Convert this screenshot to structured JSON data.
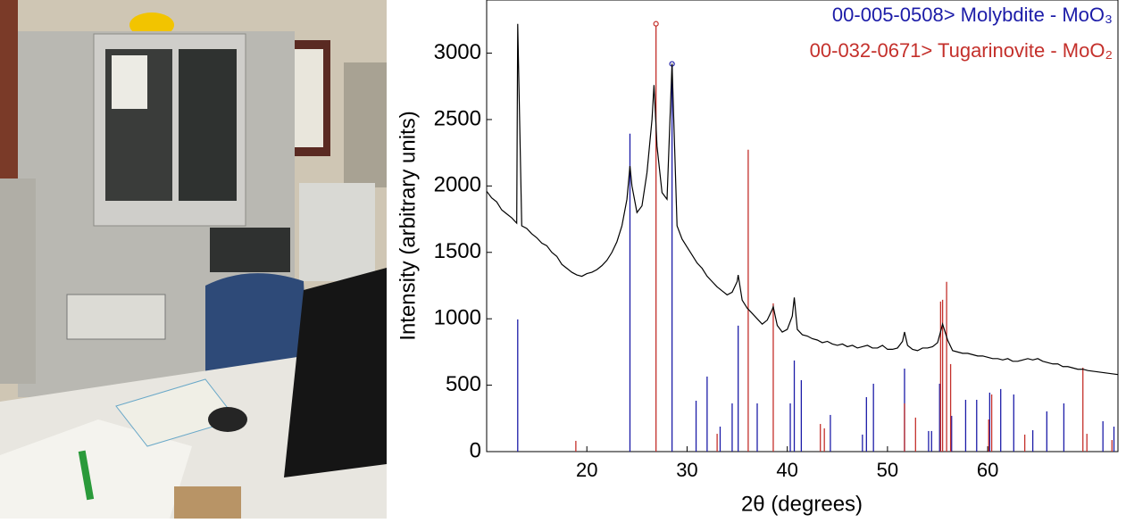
{
  "chart_data": {
    "type": "line",
    "xlabel": "2θ (degrees)",
    "ylabel": "Intensity (arbitrary units)",
    "xlim": [
      10,
      73
    ],
    "ylim": [
      0,
      3400
    ],
    "xticks": [
      20,
      30,
      40,
      50,
      60
    ],
    "yticks": [
      0,
      500,
      1000,
      1500,
      2000,
      2500,
      3000
    ],
    "series": [
      {
        "type": "line",
        "color": "#000000",
        "x": [
          10,
          10.5,
          11,
          11.5,
          12,
          12.5,
          13,
          13.1,
          13.5,
          14,
          14.5,
          15,
          15.5,
          16,
          16.5,
          17,
          17.5,
          18,
          18.5,
          19,
          19.5,
          20,
          20.5,
          21,
          21.5,
          22,
          22.5,
          23,
          23.5,
          24,
          24.3,
          24.5,
          25,
          25.5,
          26,
          26.5,
          26.7,
          27,
          27.5,
          28,
          28.5,
          29,
          29.5,
          30,
          30.5,
          31,
          31.5,
          32,
          32.5,
          33,
          33.5,
          34,
          34.5,
          35,
          35.1,
          35.5,
          36,
          36.5,
          37,
          37.5,
          38,
          38.5,
          38.6,
          39,
          39.5,
          40,
          40.5,
          40.7,
          41,
          41.5,
          42,
          42.5,
          43,
          43.5,
          44,
          44.5,
          45,
          45.5,
          46,
          46.5,
          47,
          47.5,
          48,
          48.5,
          49,
          49.5,
          50,
          50.5,
          51,
          51.5,
          51.7,
          52,
          52.5,
          53,
          53.5,
          54,
          54.5,
          55,
          55.5,
          56,
          56.5,
          57,
          57.5,
          58,
          58.5,
          59,
          59.5,
          60,
          60.5,
          61,
          61.5,
          62,
          62.5,
          63,
          63.5,
          64,
          64.5,
          65,
          65.5,
          66,
          66.5,
          67,
          67.5,
          68,
          68.5,
          69,
          69.5,
          70,
          70.5,
          71,
          71.5,
          72,
          72.5,
          73
        ],
        "values": [
          1960,
          1910,
          1880,
          1820,
          1790,
          1760,
          1720,
          3220,
          1700,
          1680,
          1640,
          1610,
          1570,
          1550,
          1500,
          1470,
          1410,
          1380,
          1350,
          1330,
          1320,
          1340,
          1350,
          1370,
          1400,
          1440,
          1500,
          1580,
          1700,
          1900,
          2150,
          2000,
          1800,
          1850,
          2100,
          2500,
          2760,
          2300,
          1950,
          1900,
          2920,
          1700,
          1600,
          1540,
          1480,
          1420,
          1380,
          1320,
          1280,
          1240,
          1210,
          1180,
          1200,
          1280,
          1330,
          1140,
          1080,
          1040,
          1000,
          960,
          990,
          1070,
          1090,
          950,
          900,
          920,
          1020,
          1160,
          920,
          880,
          870,
          850,
          840,
          820,
          830,
          810,
          800,
          810,
          790,
          800,
          780,
          790,
          800,
          780,
          780,
          800,
          770,
          770,
          780,
          830,
          900,
          800,
          770,
          760,
          780,
          780,
          790,
          820,
          960,
          840,
          760,
          750,
          740,
          740,
          730,
          720,
          720,
          710,
          700,
          700,
          690,
          700,
          680,
          680,
          690,
          700,
          690,
          700,
          680,
          670,
          660,
          660,
          640,
          640,
          630,
          620,
          620,
          610,
          605,
          600,
          595,
          590,
          585,
          580
        ]
      },
      {
        "type": "stick",
        "name": "00-005-0508> Molybdite - MoO₃",
        "color": "#1c1ca8",
        "x": [
          13.1,
          24.3,
          28.5,
          30.9,
          32.0,
          33.3,
          34.5,
          35.1,
          37.0,
          40.3,
          40.7,
          41.4,
          44.3,
          47.5,
          47.9,
          48.6,
          51.7,
          54.1,
          54.4,
          55.2,
          56.4,
          57.8,
          58.9,
          60.2,
          61.3,
          62.6,
          64.5,
          65.9,
          67.6,
          71.5,
          72.6
        ],
        "values": [
          995,
          2394,
          2919,
          383,
          565,
          188,
          363,
          948,
          363,
          363,
          686,
          538,
          276,
          128,
          410,
          511,
          625,
          155,
          155,
          511,
          269,
          390,
          390,
          444,
          471,
          430,
          161,
          303,
          363,
          229,
          188
        ]
      },
      {
        "type": "stick",
        "name": "00-032-0671> Tugarinovite - MoO₂",
        "color": "#c4302b",
        "x": [
          18.9,
          26.9,
          33.0,
          36.1,
          38.6,
          43.3,
          43.7,
          51.7,
          52.8,
          55.3,
          55.5,
          55.9,
          56.3,
          60.1,
          60.4,
          63.7,
          69.5,
          69.9,
          72.4
        ],
        "values": [
          81,
          3221,
          134,
          2273,
          1116,
          208,
          175,
          363,
          256,
          1130,
          1143,
          1278,
          659,
          242,
          430,
          128,
          632,
          134,
          87
        ]
      }
    ]
  }
}
